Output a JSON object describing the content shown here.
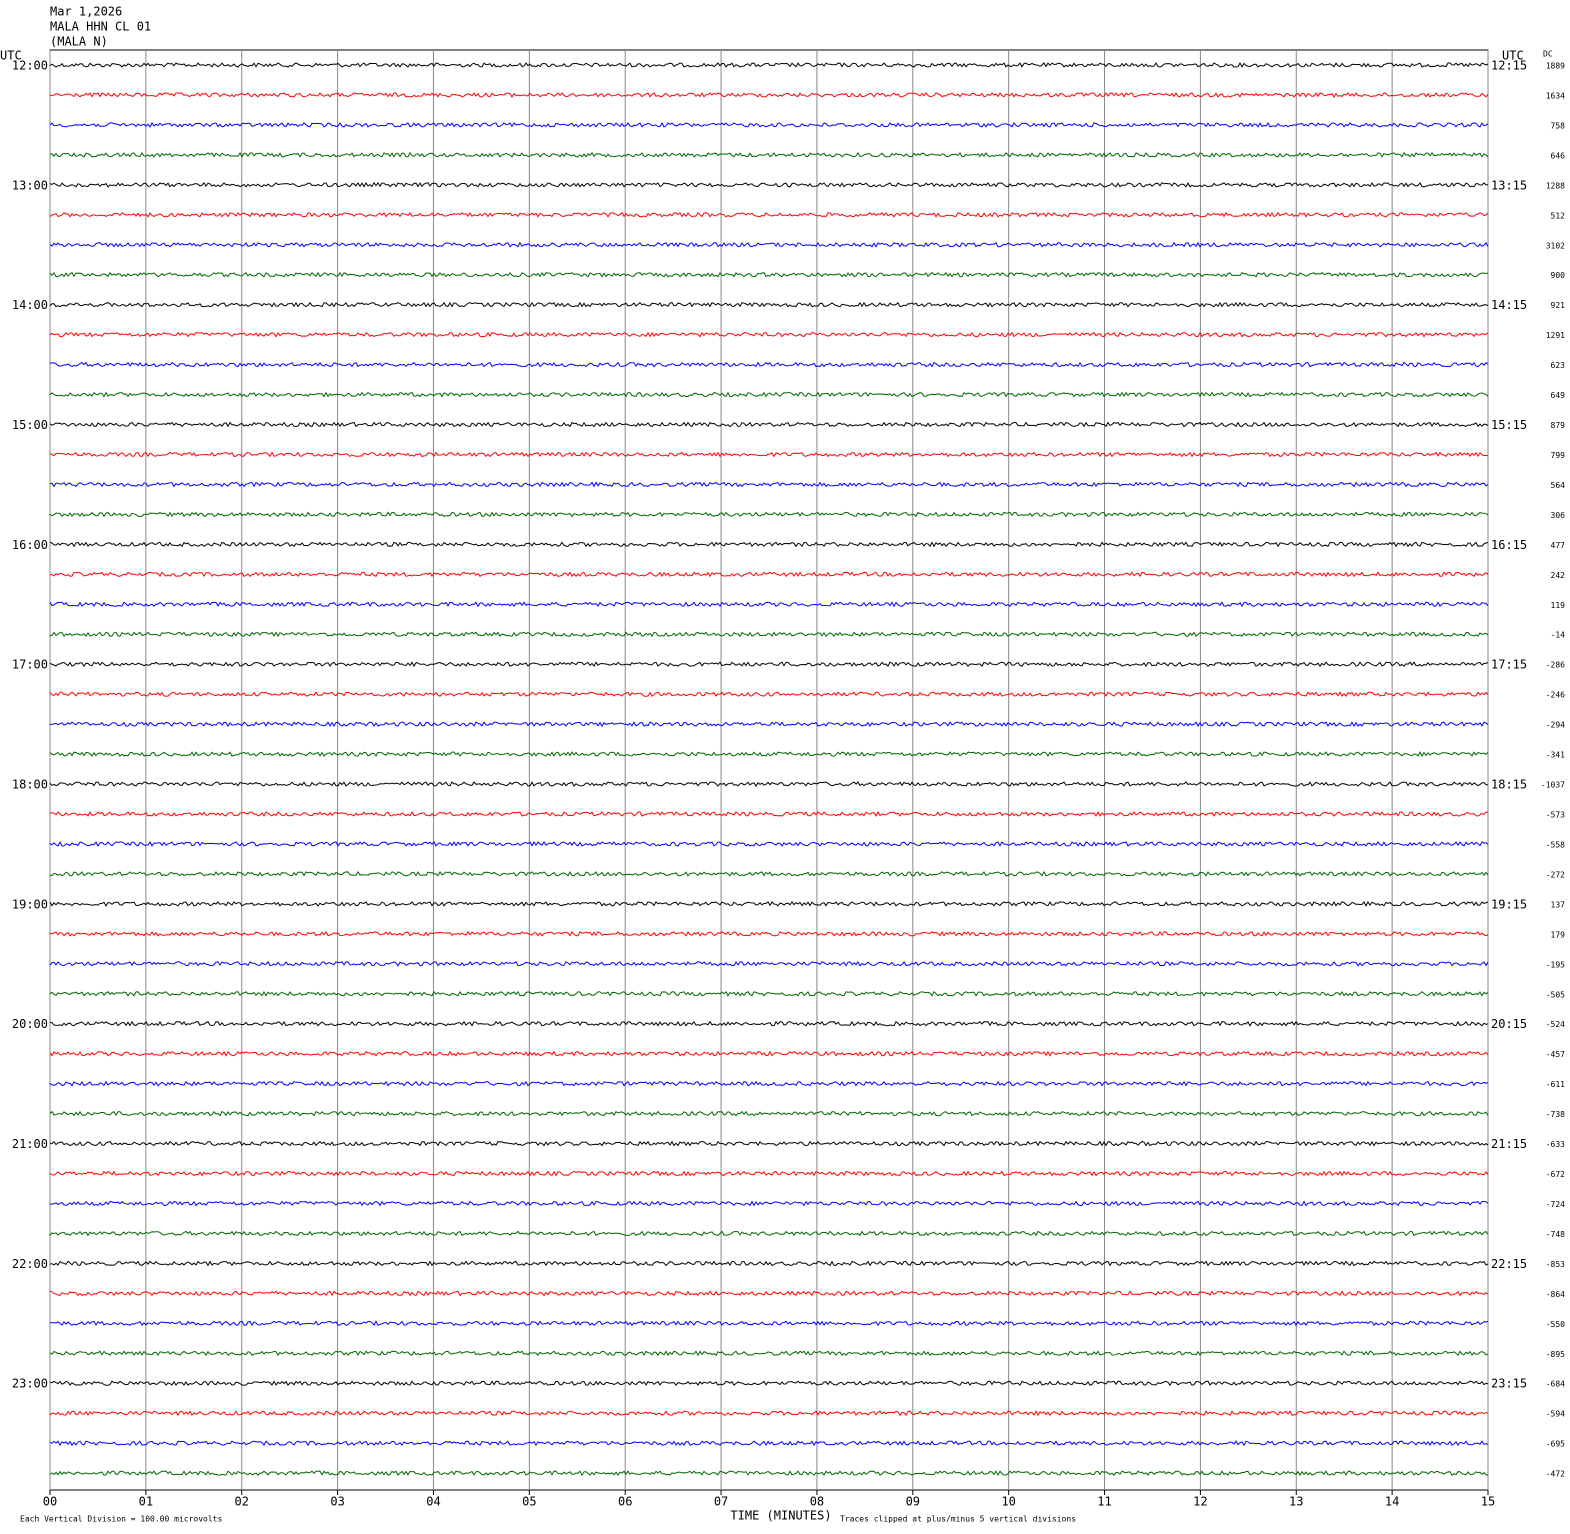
{
  "chart_data": {
    "type": "helicorder",
    "header": [
      "Mar 1,2026",
      "MALA HHN CL 01",
      "(MALA N)"
    ],
    "left_axis_title": "UTC",
    "right_axis_title": "UTC",
    "dc_title": "DC",
    "left_labels": [
      "12:00",
      "13:00",
      "14:00",
      "15:00",
      "16:00",
      "17:00",
      "18:00",
      "19:00",
      "20:00",
      "21:00",
      "22:00",
      "23:00"
    ],
    "right_labels": [
      "12:15",
      "13:15",
      "14:15",
      "15:15",
      "16:15",
      "17:15",
      "18:15",
      "19:15",
      "20:15",
      "21:15",
      "22:15",
      "23:15"
    ],
    "dc_values": [
      1889,
      1634,
      758,
      646,
      1288,
      512,
      3102,
      900,
      921,
      1291,
      623,
      649,
      879,
      799,
      564,
      306,
      477,
      242,
      119,
      -14,
      -286,
      -246,
      -294,
      -341,
      -1037,
      -573,
      -558,
      -272,
      137,
      179,
      -195,
      -505,
      -524,
      -457,
      -611,
      -738,
      -633,
      -672,
      -724,
      -748,
      -853,
      -864,
      -550,
      -895,
      -684,
      -594,
      -695,
      -472
    ],
    "trace_colors": [
      "#000000",
      "#ff0000",
      "#0000ff",
      "#006400"
    ],
    "xlim": [
      0,
      15
    ],
    "xticks": [
      {
        "value": 0,
        "label": "00"
      },
      {
        "value": 1,
        "label": "01"
      },
      {
        "value": 2,
        "label": "02"
      },
      {
        "value": 3,
        "label": "03"
      },
      {
        "value": 4,
        "label": "04"
      },
      {
        "value": 5,
        "label": "05"
      },
      {
        "value": 6,
        "label": "06"
      },
      {
        "value": 7,
        "label": "07"
      },
      {
        "value": 8,
        "label": "08"
      },
      {
        "value": 9,
        "label": "09"
      },
      {
        "value": 10,
        "label": "10"
      },
      {
        "value": 11,
        "label": "11"
      },
      {
        "value": 12,
        "label": "12"
      },
      {
        "value": 13,
        "label": "13"
      },
      {
        "value": 14,
        "label": "14"
      },
      {
        "value": 15,
        "label": "15"
      }
    ],
    "xlabel": "TIME (MINUTES)",
    "footer_left": "Each Vertical Division =  100.00 microvolts",
    "footer_right": "Traces clipped at plus/minus 5 vertical divisions",
    "grid": true
  }
}
